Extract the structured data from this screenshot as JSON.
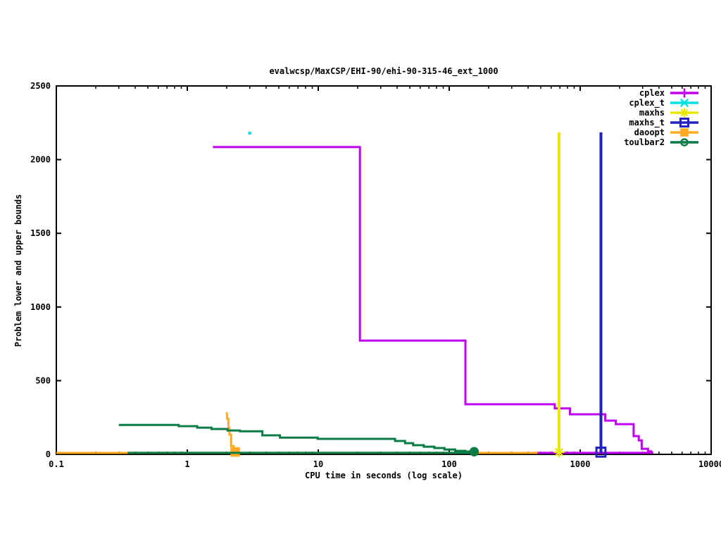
{
  "chart_data": {
    "type": "line",
    "title": "evalwcsp/MaxCSP/EHI-90/ehi-90-315-46_ext_1000",
    "xlabel": "CPU time in seconds (log scale)",
    "ylabel": "Problem lower and upper bounds",
    "x_scale": "log",
    "xlim": [
      0.1,
      10000
    ],
    "ylim": [
      0,
      2500
    ],
    "grid": false,
    "legend_position": "top-right-inside",
    "x_ticks": {
      "values": [
        0.1,
        1,
        10,
        100,
        1000,
        10000
      ],
      "labels": [
        "0.1",
        "1",
        "10",
        "100",
        "1000",
        "10000"
      ]
    },
    "y_ticks": {
      "values": [
        0,
        500,
        1000,
        1500,
        2000,
        2500
      ],
      "labels": [
        "0",
        "500",
        "1000",
        "1500",
        "2000",
        "2500"
      ]
    },
    "series": [
      {
        "name": "cplex",
        "color": "#c000f0",
        "marker": "plus",
        "line_width": 3,
        "lines": [
          [
            [
              1.57,
              2085
            ],
            [
              20.8,
              2085
            ],
            [
              20.8,
              772
            ],
            [
              133,
              772
            ],
            [
              133,
              340
            ],
            [
              640,
              340
            ],
            [
              640,
              312
            ],
            [
              836,
              312
            ],
            [
              836,
              272
            ],
            [
              1553,
              272
            ],
            [
              1553,
              229
            ],
            [
              1872,
              229
            ],
            [
              1872,
              205
            ],
            [
              2560,
              205
            ],
            [
              2560,
              124
            ],
            [
              2800,
              124
            ],
            [
              2800,
              95
            ],
            [
              2950,
              95
            ],
            [
              2950,
              38
            ],
            [
              3300,
              38
            ],
            [
              3300,
              20
            ],
            [
              3550,
              20
            ]
          ],
          [
            [
              430,
              10
            ],
            [
              3550,
              10
            ],
            [
              3550,
              20
            ]
          ]
        ],
        "points": []
      },
      {
        "name": "cplex_t",
        "color": "#00e0e0",
        "marker": "times",
        "line_width": 3,
        "lines": [],
        "points": [
          {
            "x": 3.0,
            "y": 2180,
            "marker": "dot"
          }
        ]
      },
      {
        "name": "maxhs",
        "color": "#e8e800",
        "marker": "star",
        "line_width": 4,
        "lines": [
          [
            [
              690,
              2185
            ],
            [
              690,
              8
            ]
          ]
        ],
        "points": [
          {
            "x": 690,
            "y": 15,
            "marker": "star"
          }
        ]
      },
      {
        "name": "maxhs_t",
        "color": "#2222c0",
        "marker": "open-square",
        "line_width": 4,
        "lines": [
          [
            [
              1440,
              2185
            ],
            [
              1440,
              8
            ]
          ]
        ],
        "points": [
          {
            "x": 1440,
            "y": 15,
            "marker": "open-square"
          }
        ]
      },
      {
        "name": "daoopt",
        "color": "#ffaa22",
        "marker": "filled-square",
        "line_width": 3,
        "lines": [
          [
            [
              2.0,
              286
            ],
            [
              2.02,
              240
            ],
            [
              2.06,
              240
            ],
            [
              2.06,
              180
            ],
            [
              2.1,
              180
            ],
            [
              2.1,
              134
            ],
            [
              2.16,
              134
            ],
            [
              2.16,
              57
            ],
            [
              2.26,
              57
            ],
            [
              2.26,
              22
            ]
          ],
          [
            [
              0.1,
              10
            ],
            [
              473,
              10
            ]
          ]
        ],
        "points": [
          {
            "x": 2.32,
            "y": 16,
            "marker": "filled-square"
          }
        ]
      },
      {
        "name": "toulbar2",
        "color": "#0c7c46",
        "marker": "circled-dot",
        "line_width": 3,
        "lines": [
          [
            [
              0.3,
              200
            ],
            [
              0.86,
              200
            ],
            [
              0.86,
              191
            ],
            [
              1.19,
              191
            ],
            [
              1.19,
              181
            ],
            [
              1.53,
              181
            ],
            [
              1.53,
              172
            ],
            [
              2.03,
              172
            ],
            [
              2.03,
              162
            ],
            [
              2.52,
              162
            ],
            [
              2.52,
              157
            ],
            [
              3.74,
              157
            ],
            [
              3.74,
              129
            ],
            [
              5.1,
              129
            ],
            [
              5.1,
              114
            ],
            [
              9.9,
              114
            ],
            [
              9.9,
              105
            ],
            [
              38.6,
              105
            ],
            [
              38.6,
              91
            ],
            [
              46,
              91
            ],
            [
              46,
              76
            ],
            [
              53,
              76
            ],
            [
              53,
              62
            ],
            [
              64,
              62
            ],
            [
              64,
              52
            ],
            [
              77,
              52
            ],
            [
              77,
              43
            ],
            [
              92,
              43
            ],
            [
              92,
              33
            ],
            [
              111,
              33
            ],
            [
              111,
              24
            ],
            [
              133,
              24
            ],
            [
              133,
              19
            ],
            [
              152,
              19
            ]
          ],
          [
            [
              0.35,
              10
            ],
            [
              150,
              10
            ],
            [
              152,
              18
            ]
          ]
        ],
        "points": [
          {
            "x": 155,
            "y": 18,
            "marker": "filled-circle"
          }
        ]
      }
    ]
  }
}
